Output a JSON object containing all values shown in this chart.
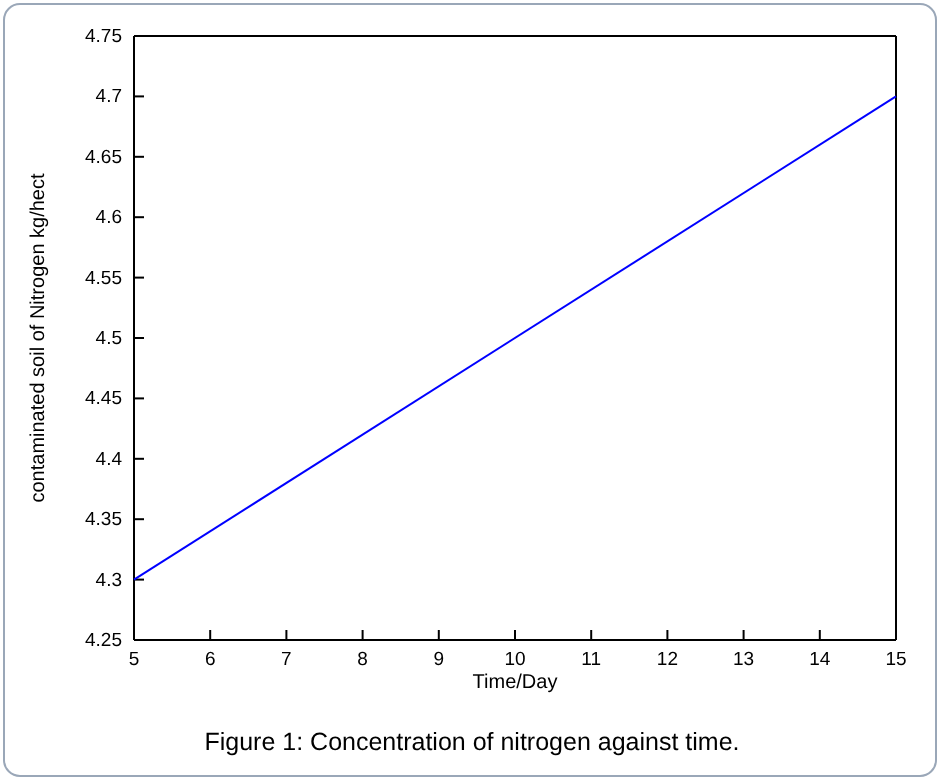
{
  "chart_data": {
    "type": "line",
    "xlabel": "Time/Day",
    "ylabel": "contaminated soil of Nitrogen kg/hect",
    "x": [
      5,
      15
    ],
    "series": [
      {
        "color": "#0000ff",
        "values": [
          4.3,
          4.7
        ]
      }
    ],
    "xlim": [
      5,
      15
    ],
    "xticks": [
      5,
      6,
      7,
      8,
      9,
      10,
      11,
      12,
      13,
      14,
      15
    ],
    "ylim": [
      4.25,
      4.75
    ],
    "yticks": [
      4.25,
      4.3,
      4.35,
      4.4,
      4.45,
      4.5,
      4.55,
      4.6,
      4.65,
      4.7,
      4.75
    ],
    "grid": false,
    "marker": "none",
    "line_style": "solid",
    "annotations": [
      "Figure 1: Concentration of nitrogen against time."
    ]
  }
}
